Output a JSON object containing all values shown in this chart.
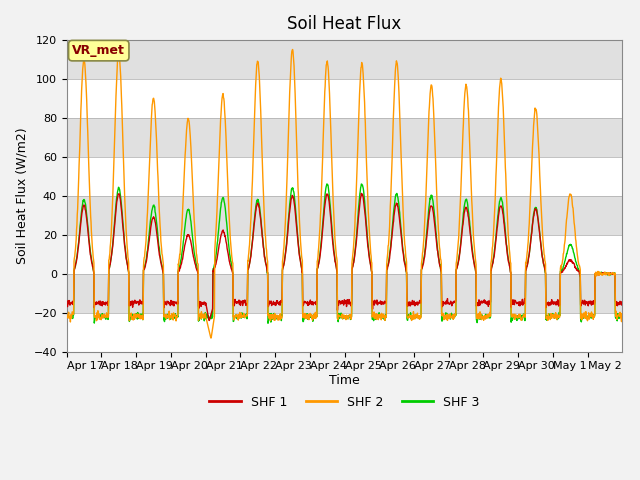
{
  "title": "Soil Heat Flux",
  "ylabel": "Soil Heat Flux (W/m2)",
  "xlabel": "Time",
  "ylim": [
    -40,
    120
  ],
  "yticks": [
    -40,
    -20,
    0,
    20,
    40,
    60,
    80,
    100,
    120
  ],
  "x_tick_labels": [
    "Apr 17",
    "Apr 18",
    "Apr 19",
    "Apr 20",
    "Apr 21",
    "Apr 22",
    "Apr 23",
    "Apr 24",
    "Apr 25",
    "Apr 26",
    "Apr 27",
    "Apr 28",
    "Apr 29",
    "Apr 30",
    "May 1",
    "May 2"
  ],
  "colors": {
    "SHF1": "#cc0000",
    "SHF2": "#ff9900",
    "SHF3": "#00cc00"
  },
  "legend_labels": [
    "SHF 1",
    "SHF 2",
    "SHF 3"
  ],
  "annotation_text": "VR_met",
  "annotation_box_color": "#ffff99",
  "annotation_box_edge": "#888844",
  "annotation_text_color": "#880000",
  "plot_bg_color": "#e8e8e8",
  "fig_bg_color": "#f2f2f2",
  "grid_colors": [
    "#ffffff",
    "#d8d8d8"
  ],
  "title_fontsize": 12,
  "label_fontsize": 9,
  "tick_fontsize": 8
}
